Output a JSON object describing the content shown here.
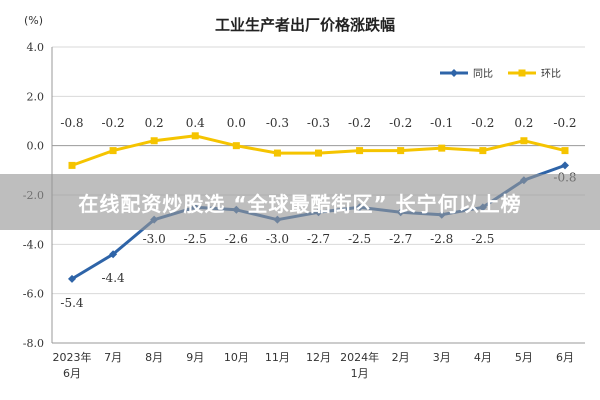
{
  "chart_data": {
    "type": "line",
    "title": "工业生产者出厂价格涨跌幅",
    "unit": "(%)",
    "categories": [
      [
        "2023年",
        "6月"
      ],
      [
        "7月"
      ],
      [
        "8月"
      ],
      [
        "9月"
      ],
      [
        "10月"
      ],
      [
        "11月"
      ],
      [
        "12月"
      ],
      [
        "2024年",
        "1月"
      ],
      [
        "2月"
      ],
      [
        "3月"
      ],
      [
        "4月"
      ],
      [
        "5月"
      ],
      [
        "6月"
      ]
    ],
    "series": [
      {
        "name": "同比",
        "color": "#2e64a8",
        "values": [
          -5.4,
          -4.4,
          -3.0,
          -2.5,
          -2.6,
          -3.0,
          -2.7,
          -2.5,
          -2.7,
          -2.8,
          -2.5,
          -1.4,
          -0.8
        ],
        "labels": [
          "-5.4",
          "-4.4",
          "-3.0",
          "-2.5",
          "-2.6",
          "-3.0",
          "-2.7",
          "-2.5",
          "-2.7",
          "-2.8",
          "-2.5",
          "",
          "-0.8"
        ]
      },
      {
        "name": "环比",
        "color": "#f5c400",
        "values": [
          -0.8,
          -0.2,
          0.2,
          0.4,
          0.0,
          -0.3,
          -0.3,
          -0.2,
          -0.2,
          -0.1,
          -0.2,
          0.2,
          -0.2
        ],
        "labels": [
          "-0.8",
          "-0.2",
          "0.2",
          "0.4",
          "0.0",
          "-0.3",
          "-0.3",
          "-0.2",
          "-0.2",
          "-0.1",
          "-0.2",
          "0.2",
          "-0.2"
        ]
      }
    ],
    "yticks": [
      "4.0",
      "2.0",
      "0.0",
      "-2.0",
      "-4.0",
      "-6.0",
      "-8.0"
    ],
    "ylim": [
      -8,
      4
    ],
    "grid": true,
    "legend": "top-right"
  },
  "overlay": {
    "text": "在线配资炒股选 “全球最酷街区” 长宁何以上榜"
  }
}
